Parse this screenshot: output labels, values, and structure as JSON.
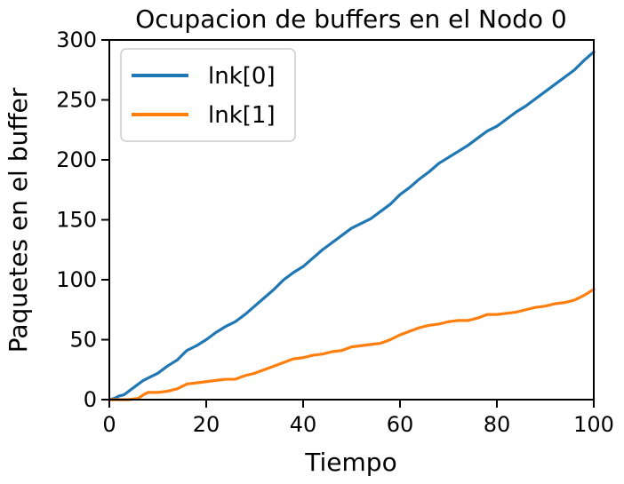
{
  "chart_data": {
    "type": "line",
    "title": "Ocupacion de buffers en el Nodo 0",
    "xlabel": "Tiempo",
    "ylabel": "Paquetes en el buffer",
    "xlim": [
      0,
      100
    ],
    "ylim": [
      0,
      300
    ],
    "xticks": [
      0,
      20,
      40,
      60,
      80,
      100
    ],
    "yticks": [
      0,
      50,
      100,
      150,
      200,
      250,
      300
    ],
    "grid": false,
    "legend_position": "top-left",
    "colors": {
      "lnk0": "#1f77b4",
      "lnk1": "#ff7f0e"
    },
    "series": [
      {
        "name": "lnk[0]",
        "color": "#1f77b4",
        "x": [
          0,
          1,
          2,
          3,
          4,
          5,
          6,
          7,
          8,
          10,
          12,
          14,
          15,
          16,
          18,
          20,
          22,
          24,
          26,
          28,
          30,
          32,
          34,
          36,
          38,
          40,
          42,
          44,
          46,
          48,
          50,
          52,
          54,
          56,
          58,
          60,
          62,
          64,
          66,
          68,
          70,
          72,
          74,
          76,
          78,
          80,
          82,
          84,
          86,
          88,
          90,
          92,
          94,
          96,
          98,
          100
        ],
        "y": [
          0,
          1,
          3,
          4,
          7,
          10,
          13,
          16,
          18,
          22,
          28,
          33,
          37,
          41,
          45,
          50,
          56,
          61,
          65,
          71,
          78,
          85,
          92,
          100,
          106,
          111,
          118,
          125,
          131,
          137,
          143,
          147,
          151,
          157,
          163,
          171,
          177,
          184,
          190,
          197,
          202,
          207,
          212,
          218,
          224,
          228,
          234,
          240,
          245,
          251,
          257,
          263,
          269,
          275,
          283,
          290
        ]
      },
      {
        "name": "lnk[1]",
        "color": "#ff7f0e",
        "x": [
          0,
          2,
          4,
          6,
          7,
          8,
          10,
          12,
          14,
          15,
          16,
          18,
          20,
          22,
          24,
          26,
          28,
          30,
          32,
          34,
          36,
          38,
          40,
          42,
          44,
          46,
          48,
          50,
          52,
          54,
          56,
          58,
          60,
          62,
          64,
          66,
          68,
          70,
          72,
          74,
          76,
          78,
          80,
          82,
          84,
          86,
          88,
          90,
          92,
          94,
          96,
          98,
          100
        ],
        "y": [
          0,
          0,
          0,
          1,
          4,
          6,
          6,
          7,
          9,
          11,
          13,
          14,
          15,
          16,
          17,
          17,
          20,
          22,
          25,
          28,
          31,
          34,
          35,
          37,
          38,
          40,
          41,
          44,
          45,
          46,
          47,
          50,
          54,
          57,
          60,
          62,
          63,
          65,
          66,
          66,
          68,
          71,
          71,
          72,
          73,
          75,
          77,
          78,
          80,
          81,
          83,
          87,
          92
        ]
      }
    ]
  }
}
